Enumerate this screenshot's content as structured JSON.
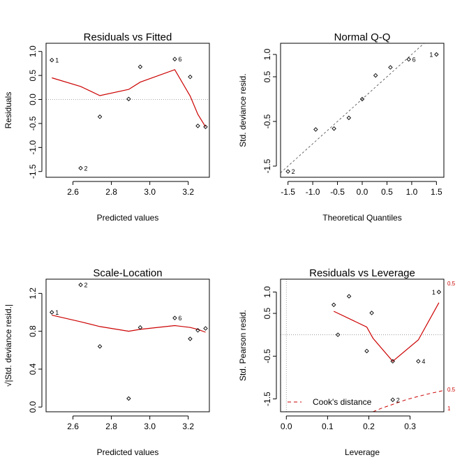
{
  "figure": {
    "background": "#ffffff",
    "smooth_color": "#cc0000",
    "ref_color": "#888888"
  },
  "chart_data": [
    {
      "type": "scatter",
      "title": "Residuals vs Fitted",
      "xlabel": "Predicted values",
      "ylabel": "Residuals",
      "xlim": [
        2.46,
        3.31
      ],
      "ylim": [
        -1.62,
        1.17
      ],
      "xticks": [
        2.6,
        2.8,
        3.0,
        3.2
      ],
      "xtick_labels": [
        "2.6",
        "2.8",
        "3.0",
        "3.2"
      ],
      "yticks": [
        -1.5,
        -1.0,
        -0.5,
        0.0,
        0.5,
        1.0
      ],
      "ytick_labels": [
        "-1.5",
        "-1.0",
        "-0.5",
        "0.0",
        "0.5",
        "1.0"
      ],
      "points": [
        {
          "x": 2.49,
          "y": 0.82,
          "label": "1"
        },
        {
          "x": 2.64,
          "y": -1.43,
          "label": "2"
        },
        {
          "x": 2.74,
          "y": -0.36
        },
        {
          "x": 2.89,
          "y": 0.01
        },
        {
          "x": 2.95,
          "y": 0.68
        },
        {
          "x": 3.13,
          "y": 0.84,
          "label": "6"
        },
        {
          "x": 3.21,
          "y": 0.47
        },
        {
          "x": 3.25,
          "y": -0.55
        },
        {
          "x": 3.29,
          "y": -0.57
        }
      ],
      "smooth": [
        [
          2.49,
          0.45
        ],
        [
          2.64,
          0.27
        ],
        [
          2.74,
          0.08
        ],
        [
          2.89,
          0.21
        ],
        [
          2.95,
          0.36
        ],
        [
          3.13,
          0.62
        ],
        [
          3.21,
          0.07
        ],
        [
          3.25,
          -0.31
        ],
        [
          3.29,
          -0.57
        ]
      ],
      "hlines": [
        0
      ],
      "vlines": [],
      "ablines": []
    },
    {
      "type": "scatter",
      "title": "Normal Q-Q",
      "xlabel": "Theoretical Quantiles",
      "ylabel": "Std. deviance resid.",
      "xlim": [
        -1.65,
        1.65
      ],
      "ylim": [
        -1.75,
        1.25
      ],
      "xticks": [
        -1.5,
        -1.0,
        -0.5,
        0.0,
        0.5,
        1.0,
        1.5
      ],
      "xtick_labels": [
        "-1.5",
        "-1.0",
        "-0.5",
        "0.0",
        "0.5",
        "1.0",
        "1.5"
      ],
      "yticks": [
        -1.5,
        -0.5,
        0.5,
        1.0
      ],
      "ytick_labels": [
        "-1.5",
        "-0.5",
        "0.5",
        "1.0"
      ],
      "points": [
        {
          "x": -1.5,
          "y": -1.62,
          "label": "2"
        },
        {
          "x": -0.94,
          "y": -0.68
        },
        {
          "x": -0.57,
          "y": -0.66
        },
        {
          "x": -0.27,
          "y": -0.42
        },
        {
          "x": 0.0,
          "y": 0.0
        },
        {
          "x": 0.27,
          "y": 0.53
        },
        {
          "x": 0.57,
          "y": 0.71
        },
        {
          "x": 0.94,
          "y": 0.89,
          "label": "6"
        },
        {
          "x": 1.5,
          "y": 1.0,
          "label": "1"
        }
      ],
      "smooth": [],
      "hlines": [],
      "vlines": [],
      "ablines": [
        {
          "slope": 1.0,
          "intercept": 0.0
        }
      ]
    },
    {
      "type": "scatter",
      "title": "Scale-Location",
      "xlabel": "Predicted values",
      "ylabel": "√|Std. deviance resid.|",
      "xlim": [
        2.46,
        3.31
      ],
      "ylim": [
        -0.05,
        1.35
      ],
      "xticks": [
        2.6,
        2.8,
        3.0,
        3.2
      ],
      "xtick_labels": [
        "2.6",
        "2.8",
        "3.0",
        "3.2"
      ],
      "yticks": [
        0.0,
        0.4,
        0.8,
        1.2
      ],
      "ytick_labels": [
        "0.0",
        "0.4",
        "0.8",
        "1.2"
      ],
      "points": [
        {
          "x": 2.49,
          "y": 1.0,
          "label": "1"
        },
        {
          "x": 2.64,
          "y": 1.29,
          "label": "2"
        },
        {
          "x": 2.74,
          "y": 0.64
        },
        {
          "x": 2.89,
          "y": 0.09
        },
        {
          "x": 2.95,
          "y": 0.84
        },
        {
          "x": 3.13,
          "y": 0.94,
          "label": "6"
        },
        {
          "x": 3.21,
          "y": 0.72
        },
        {
          "x": 3.25,
          "y": 0.81
        },
        {
          "x": 3.29,
          "y": 0.83
        }
      ],
      "smooth": [
        [
          2.49,
          0.97
        ],
        [
          2.64,
          0.9
        ],
        [
          2.74,
          0.85
        ],
        [
          2.89,
          0.8
        ],
        [
          2.95,
          0.82
        ],
        [
          3.13,
          0.86
        ],
        [
          3.21,
          0.84
        ],
        [
          3.25,
          0.82
        ],
        [
          3.29,
          0.79
        ]
      ],
      "hlines": [],
      "vlines": [],
      "ablines": []
    },
    {
      "type": "scatter",
      "title": "Residuals vs Leverage",
      "xlabel": "Leverage",
      "ylabel": "Std. Pearson resid.",
      "xlim": [
        -0.014,
        0.382
      ],
      "ylim": [
        -1.8,
        1.3
      ],
      "xticks": [
        0.0,
        0.1,
        0.2,
        0.3
      ],
      "xtick_labels": [
        "0.0",
        "0.1",
        "0.2",
        "0.3"
      ],
      "yticks": [
        -1.5,
        -0.5,
        0.5,
        1.0
      ],
      "ytick_labels": [
        "-1.5",
        "-0.5",
        "0.5",
        "1.0"
      ],
      "points": [
        {
          "x": 0.115,
          "y": 0.7
        },
        {
          "x": 0.125,
          "y": 0.0
        },
        {
          "x": 0.152,
          "y": 0.9
        },
        {
          "x": 0.195,
          "y": -0.38
        },
        {
          "x": 0.207,
          "y": 0.51
        },
        {
          "x": 0.258,
          "y": -0.62
        },
        {
          "x": 0.258,
          "y": -1.52,
          "label": "2"
        },
        {
          "x": 0.32,
          "y": -0.62,
          "label": "4"
        },
        {
          "x": 0.37,
          "y": 1.0,
          "label": "1"
        }
      ],
      "smooth": [
        [
          0.115,
          0.55
        ],
        [
          0.195,
          0.18
        ],
        [
          0.21,
          -0.08
        ],
        [
          0.258,
          -0.62
        ],
        [
          0.32,
          -0.12
        ],
        [
          0.37,
          0.75
        ]
      ],
      "hlines": [
        0
      ],
      "vlines": [
        0
      ],
      "ablines": [],
      "cooks": {
        "legend": "Cook's distance",
        "side_labels": [
          {
            "y": 1.2,
            "text": "0.5"
          },
          {
            "y": -1.28,
            "text": "0.5"
          },
          {
            "y": -1.72,
            "text": "1"
          }
        ],
        "curve": [
          [
            0.21,
            -1.8
          ],
          [
            0.23,
            -1.72
          ],
          [
            0.26,
            -1.62
          ],
          [
            0.29,
            -1.52
          ],
          [
            0.32,
            -1.44
          ],
          [
            0.35,
            -1.37
          ],
          [
            0.382,
            -1.3
          ]
        ]
      }
    }
  ]
}
